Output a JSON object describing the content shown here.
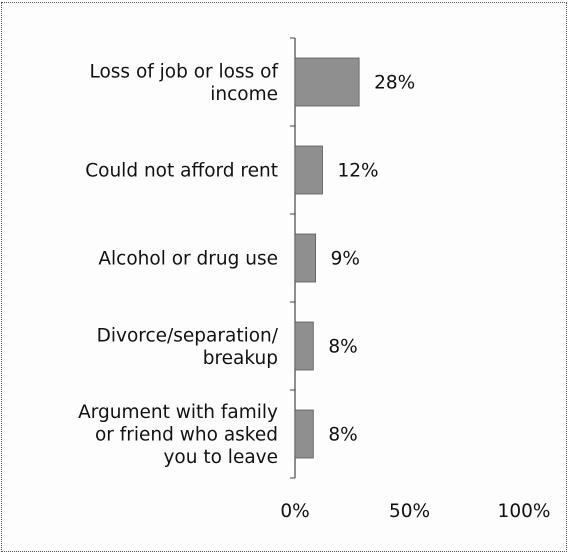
{
  "chart_data": {
    "type": "bar",
    "orientation": "horizontal",
    "categories": [
      [
        "Loss of job or loss of",
        "income"
      ],
      [
        "Could not afford rent"
      ],
      [
        "Alcohol or drug use"
      ],
      [
        "Divorce/separation/",
        "breakup"
      ],
      [
        "Argument with family",
        "or friend who asked",
        "you to leave"
      ]
    ],
    "values": [
      28,
      12,
      9,
      8,
      8
    ],
    "value_labels": [
      "28%",
      "12%",
      "9%",
      "8%",
      "8%"
    ],
    "xlim": [
      0,
      100
    ],
    "x_ticks": [
      0,
      50,
      100
    ],
    "x_tick_labels": [
      "0%",
      "50%",
      "100%"
    ],
    "grid": false,
    "legend": "none",
    "colors": {
      "bar_fill": "#8f8f8f",
      "bar_stroke": "#5a5a5a",
      "axis": "#444444"
    }
  }
}
